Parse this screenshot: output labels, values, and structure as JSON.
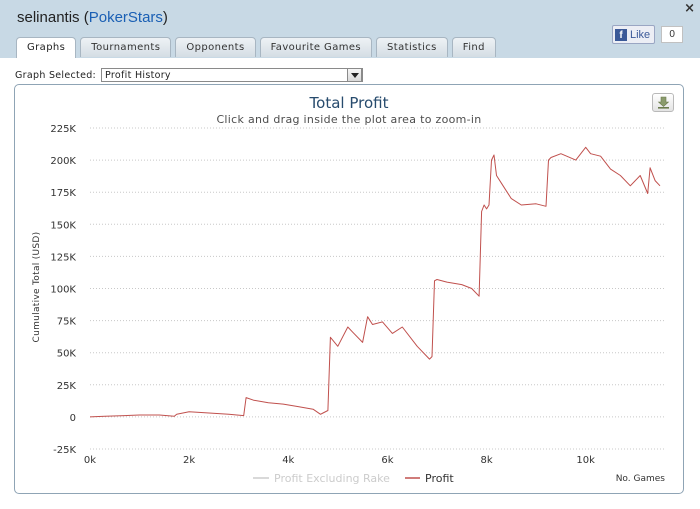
{
  "header": {
    "player_name": "selinantis",
    "site_name": "PokerStars",
    "open_paren": "(",
    "close_paren": ")",
    "close_glyph": "×",
    "fb_like_label": "Like",
    "fb_like_count": "0"
  },
  "tabs": [
    {
      "label": "Graphs",
      "active": true
    },
    {
      "label": "Tournaments"
    },
    {
      "label": "Opponents"
    },
    {
      "label": "Favourite Games"
    },
    {
      "label": "Statistics"
    },
    {
      "label": "Find"
    }
  ],
  "graph_select": {
    "label": "Graph Selected:",
    "value": "Profit History"
  },
  "colors": {
    "profit_line": "#c0504d",
    "excluding_rake_line": "#c8c8c8"
  },
  "icons": {
    "export": "download-icon",
    "close": "close-icon",
    "facebook": "facebook-icon"
  },
  "chart_data": {
    "type": "line",
    "title": "Total Profit",
    "subtitle": "Click and drag inside the plot area to zoom-in",
    "xlabel": "No. Games",
    "ylabel": "Cumulative Total (USD)",
    "xlim": [
      0,
      11600
    ],
    "ylim": [
      -25000,
      225000
    ],
    "x_ticks": [
      0,
      2000,
      4000,
      6000,
      8000,
      10000
    ],
    "x_tick_labels": [
      "0k",
      "2k",
      "4k",
      "6k",
      "8k",
      "10k"
    ],
    "y_ticks": [
      -25000,
      0,
      25000,
      50000,
      75000,
      100000,
      125000,
      150000,
      175000,
      200000,
      225000
    ],
    "y_tick_labels": [
      "-25K",
      "0",
      "25K",
      "50K",
      "75K",
      "100K",
      "125K",
      "150K",
      "175K",
      "200K",
      "225K"
    ],
    "grid": "horizontal dotted",
    "legend": "bottom-center",
    "series": [
      {
        "name": "Profit Excluding Rake",
        "visible": false,
        "x": [],
        "y": []
      },
      {
        "name": "Profit",
        "visible": true,
        "x": [
          0,
          300,
          700,
          1000,
          1400,
          1700,
          1750,
          2000,
          2400,
          2800,
          3100,
          3150,
          3300,
          3600,
          3900,
          4200,
          4500,
          4650,
          4700,
          4800,
          4850,
          5000,
          5200,
          5300,
          5500,
          5600,
          5700,
          5900,
          6100,
          6300,
          6600,
          6800,
          6850,
          6900,
          6950,
          7000,
          7200,
          7500,
          7700,
          7850,
          7900,
          7950,
          8000,
          8050,
          8100,
          8150,
          8200,
          8300,
          8500,
          8700,
          9000,
          9200,
          9250,
          9300,
          9500,
          9800,
          10000,
          10100,
          10300,
          10500,
          10700,
          10900,
          11100,
          11250,
          11300,
          11400,
          11500
        ],
        "y": [
          0,
          500,
          1000,
          1500,
          1500,
          500,
          2000,
          4000,
          3000,
          2000,
          1000,
          15000,
          13000,
          11000,
          10000,
          8000,
          6000,
          2000,
          3000,
          5000,
          62000,
          55000,
          70000,
          66000,
          58000,
          78000,
          72000,
          74000,
          65000,
          70000,
          55000,
          47000,
          45000,
          47000,
          106000,
          107000,
          105000,
          103000,
          100000,
          94000,
          160000,
          165000,
          162000,
          165000,
          200000,
          204000,
          188000,
          182000,
          170000,
          165000,
          166000,
          164000,
          200000,
          202000,
          205000,
          200000,
          210000,
          205000,
          203000,
          193000,
          188000,
          180000,
          188000,
          174000,
          194000,
          184000,
          180000
        ]
      }
    ]
  }
}
